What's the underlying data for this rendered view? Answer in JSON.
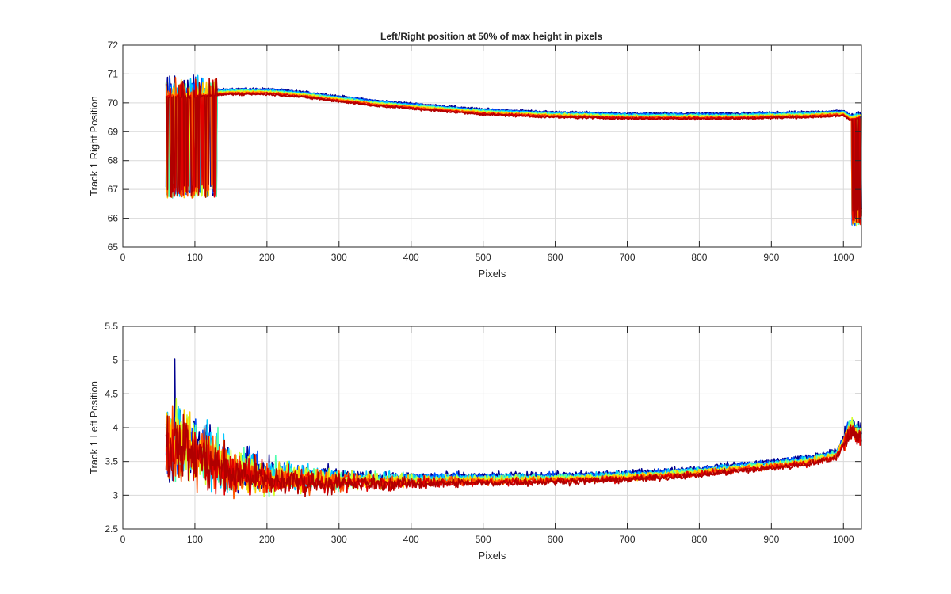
{
  "figure": {
    "title": "Left/Right position at 50% of max height in pixels"
  },
  "colors": {
    "grid": "#d9d9d9",
    "axis": "#262626",
    "background": "#ffffff",
    "series_colormap": [
      "#00008f",
      "#0050ff",
      "#00c8ff",
      "#50ffaf",
      "#d2ff2d",
      "#ffc800",
      "#ff5000",
      "#e00000",
      "#b00000"
    ]
  },
  "chart_data": [
    {
      "type": "line",
      "title": "Left/Right position at 50% of max height in pixels",
      "xlabel": "Pixels",
      "ylabel": "Track 1 Right Position",
      "xlim": [
        0,
        1025
      ],
      "ylim": [
        65,
        72
      ],
      "xticks": [
        0,
        100,
        200,
        300,
        400,
        500,
        600,
        700,
        800,
        900,
        1000
      ],
      "xtick_labels": [
        "0",
        "100",
        "200",
        "300",
        "400",
        "500",
        "600",
        "700",
        "800",
        "900",
        "1000"
      ],
      "yticks": [
        65,
        66,
        67,
        68,
        69,
        70,
        71,
        72
      ],
      "ytick_labels": [
        "65",
        "66",
        "67",
        "68",
        "69",
        "70",
        "71",
        "72"
      ],
      "grid": true,
      "legend": "none",
      "series_count": 9,
      "x_range": [
        60,
        1025
      ],
      "trend": {
        "x": [
          60,
          100,
          150,
          200,
          250,
          300,
          350,
          400,
          450,
          500,
          550,
          600,
          650,
          700,
          750,
          800,
          850,
          900,
          950,
          1000,
          1010,
          1025
        ],
        "y": [
          70.2,
          70.2,
          70.3,
          70.3,
          70.2,
          70.05,
          69.9,
          69.8,
          69.7,
          69.6,
          69.55,
          69.5,
          69.48,
          69.45,
          69.45,
          69.45,
          69.45,
          69.48,
          69.5,
          69.55,
          69.4,
          69.5
        ]
      },
      "series_offset": 0.18,
      "noise": 0.05,
      "spike_region": {
        "x_start": 60,
        "x_end": 130,
        "min_y": 66.7,
        "max_y": 71.05
      },
      "tail_drop_region": {
        "x_start": 1012,
        "x_end": 1025,
        "min_y": 65.75
      }
    },
    {
      "type": "line",
      "title": "",
      "xlabel": "Pixels",
      "ylabel": "Track 1 Left Position",
      "xlim": [
        0,
        1025
      ],
      "ylim": [
        2.5,
        5.5
      ],
      "xticks": [
        0,
        100,
        200,
        300,
        400,
        500,
        600,
        700,
        800,
        900,
        1000
      ],
      "xtick_labels": [
        "0",
        "100",
        "200",
        "300",
        "400",
        "500",
        "600",
        "700",
        "800",
        "900",
        "1000"
      ],
      "yticks": [
        2.5,
        3,
        3.5,
        4,
        4.5,
        5,
        5.5
      ],
      "ytick_labels": [
        "2.5",
        "3",
        "3.5",
        "4",
        "4.5",
        "5",
        "5.5"
      ],
      "grid": true,
      "legend": "none",
      "series_count": 9,
      "x_range": [
        60,
        1025
      ],
      "trend": {
        "x": [
          60,
          80,
          100,
          120,
          150,
          180,
          200,
          250,
          300,
          350,
          400,
          450,
          500,
          550,
          600,
          650,
          700,
          750,
          800,
          850,
          900,
          950,
          990,
          1010,
          1025
        ],
        "y": [
          3.7,
          3.7,
          3.6,
          3.5,
          3.3,
          3.3,
          3.2,
          3.2,
          3.17,
          3.17,
          3.17,
          3.18,
          3.18,
          3.19,
          3.2,
          3.21,
          3.23,
          3.26,
          3.3,
          3.35,
          3.4,
          3.46,
          3.55,
          3.95,
          3.85
        ]
      },
      "series_offset": 0.1,
      "noise_start": 0.45,
      "noise_end": 0.04,
      "peak_max": 5.02
    }
  ]
}
